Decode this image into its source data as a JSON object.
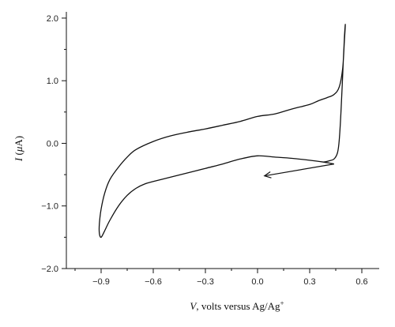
{
  "chart_data": {
    "type": "line",
    "xlabel": "V, volts versus Ag/Ag⁺",
    "xlabel_parts": {
      "var": "V",
      "rest": ", volts versus Ag/Ag",
      "sup": "+"
    },
    "ylabel": "I (μA)",
    "ylabel_parts": {
      "var": "I",
      "open": " (",
      "mu": "μ",
      "unit": "A",
      "close": ")"
    },
    "xlim": [
      -1.1,
      0.7
    ],
    "ylim": [
      -2.0,
      2.1
    ],
    "x_ticks": [
      -0.9,
      -0.6,
      -0.3,
      0.0,
      0.3,
      0.6
    ],
    "x_tick_labels": [
      "−0.9",
      "−0.6",
      "−0.3",
      "0.0",
      "0.3",
      "0.6"
    ],
    "y_ticks": [
      -2.0,
      -1.0,
      0.0,
      1.0,
      2.0
    ],
    "y_tick_labels": [
      "−2.0",
      "−1.0",
      "0.0",
      "1.0",
      "2.0"
    ],
    "grid": false,
    "legend": "none",
    "series": [
      {
        "points": [
          [
            0.44,
            -0.33
          ],
          [
            0.38,
            -0.3
          ],
          [
            0.3,
            -0.27
          ],
          [
            0.2,
            -0.24
          ],
          [
            0.1,
            -0.22
          ],
          [
            0.0,
            -0.2
          ],
          [
            -0.1,
            -0.25
          ],
          [
            -0.2,
            -0.33
          ],
          [
            -0.3,
            -0.4
          ],
          [
            -0.4,
            -0.47
          ],
          [
            -0.5,
            -0.54
          ],
          [
            -0.6,
            -0.61
          ],
          [
            -0.65,
            -0.65
          ],
          [
            -0.7,
            -0.72
          ],
          [
            -0.75,
            -0.83
          ],
          [
            -0.8,
            -1.0
          ],
          [
            -0.85,
            -1.23
          ],
          [
            -0.88,
            -1.4
          ],
          [
            -0.9,
            -1.5
          ],
          [
            -0.91,
            -1.44
          ],
          [
            -0.91,
            -1.28
          ],
          [
            -0.9,
            -1.05
          ],
          [
            -0.88,
            -0.8
          ],
          [
            -0.85,
            -0.58
          ],
          [
            -0.8,
            -0.38
          ],
          [
            -0.75,
            -0.22
          ],
          [
            -0.7,
            -0.1
          ],
          [
            -0.6,
            0.03
          ],
          [
            -0.5,
            0.12
          ],
          [
            -0.4,
            0.18
          ],
          [
            -0.3,
            0.23
          ],
          [
            -0.2,
            0.29
          ],
          [
            -0.1,
            0.35
          ],
          [
            0.0,
            0.43
          ],
          [
            0.1,
            0.47
          ],
          [
            0.2,
            0.55
          ],
          [
            0.3,
            0.62
          ],
          [
            0.35,
            0.68
          ],
          [
            0.4,
            0.73
          ],
          [
            0.44,
            0.78
          ],
          [
            0.47,
            0.9
          ],
          [
            0.49,
            1.2
          ],
          [
            0.5,
            1.65
          ],
          [
            0.505,
            1.9
          ],
          [
            0.5,
            1.7
          ],
          [
            0.49,
            1.1
          ],
          [
            0.48,
            0.5
          ],
          [
            0.47,
            0.05
          ],
          [
            0.46,
            -0.15
          ],
          [
            0.44,
            -0.25
          ],
          [
            0.41,
            -0.28
          ],
          [
            0.38,
            -0.3
          ]
        ]
      }
    ],
    "annotations": [
      {
        "type": "arrow",
        "from": [
          0.44,
          -0.33
        ],
        "to": [
          0.04,
          -0.52
        ]
      }
    ]
  }
}
